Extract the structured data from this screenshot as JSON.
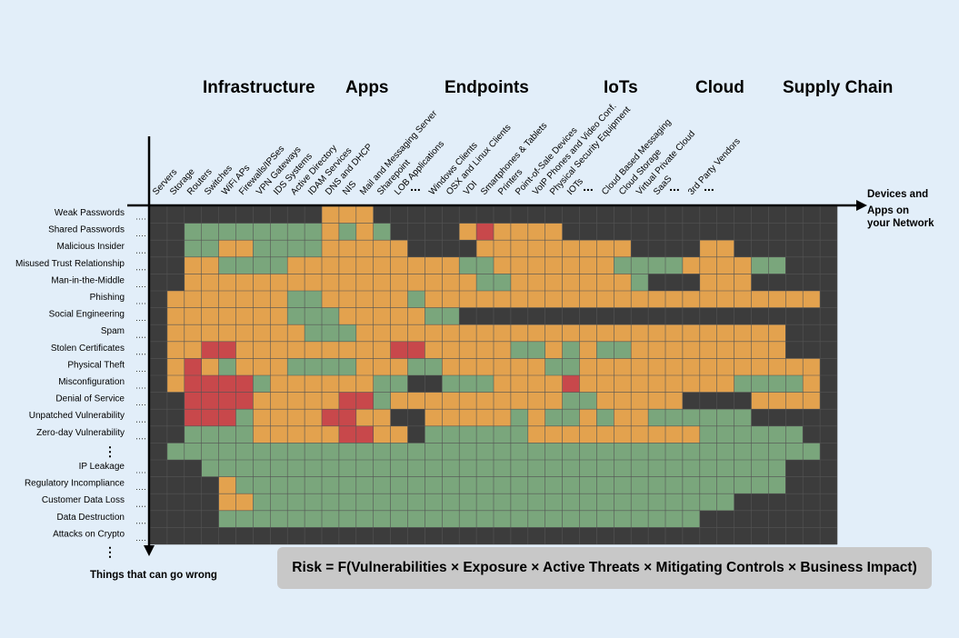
{
  "categories": [
    "Infrastructure",
    "Apps",
    "Endpoints",
    "IoTs",
    "Cloud",
    "Supply Chain"
  ],
  "columns": [
    "Servers",
    "Storage",
    "Routers",
    "Switches",
    "WiFi APs",
    "Firewalls/IPSes",
    "VPN Gateways",
    "IDS Systems",
    "Active Directory",
    "IDAM Services",
    "DNS and DHCP",
    "NIS",
    "Mail and Messaging Server",
    "Sharepoint",
    "LOB Applications",
    "...",
    "Windows Clients",
    "OSX and Linux Clients",
    "VDI",
    "Smartphones & Tablets",
    "Printers",
    "Point-of-Sale Devices",
    "VoIP Phones and Video Conf.",
    "Physical Security Equipment",
    "IOTs",
    "...",
    "Cloud Based Messaging",
    "Cloud Storage",
    "Virtual Private Cloud",
    "SaaS",
    "...",
    "3rd Party Vendors",
    "...",
    ""
  ],
  "rows": [
    "Weak Passwords",
    "Shared Passwords",
    "Malicious Insider",
    "Misused Trust Relationship",
    "Man-in-the-Middle",
    "Phishing",
    "Social Engineering",
    "Spam",
    "Stolen Certificates",
    "Physical Theft",
    "Misconfiguration",
    "Denial of Service",
    "Unpatched Vulnerability",
    "Zero-day Vulnerability",
    "⋮",
    "IP Leakage",
    "Regulatory Incompliance",
    "Customer Data Loss",
    "Data Destruction",
    "Attacks on Crypto"
  ],
  "x_axis_label": [
    "Devices and",
    "Apps on",
    "your Network"
  ],
  "y_axis_label": "Things that can go wrong",
  "y_axis_more": "⋮",
  "formula": "Risk = F(Vulnerabilities × Exposure × Active Threats × Mitigating Controls × Business Impact)",
  "colors": {
    "D": "#3c3c3c",
    "G": "#7aa67c",
    "O": "#e3a24e",
    "R": "#c8484b",
    "background": "#e2eef9",
    "formula_box": "#c8c8c8"
  },
  "grid": [
    "DDDDDDDDDDOOODDDDDDDDDDDDDDDDDDDDDDDDDDD",
    "DDGGGGGGGGOGOGDDDDOROOOODDDDDDDDDDDDDDDD",
    "DDGGOOGGGGOOOOODDDDOOOOOOOOODDDDOODDDDDD",
    "DDOOGGGGOOOOOOOOOOGGOOOOOOOGGGGOOOOGGDDD",
    "DDOOOOOOOOOOOOOOOOOGGOOOOOOOGDDDOOODDDDD",
    "DOOOOOOOGGOOOOOGOOOOOOOOOOOOOOOOOOOOOOOD",
    "DOOOOOOOGGGOOOOOGGDDDDDDDDDDDDDDDDDDDDDD",
    "DOOOOOOOOGGGOOOOOOOOOOOOOOOOOOOOOOOOODDD",
    "DOORROOOOOOOOORROOOOOGGOGOGGOOOOOOOOODDD",
    "DOROGOOOGGGGOOOGGOOOOOOGGOOOOOOOOOOOOOOD",
    "DORRRRGOOOOOOGGDDGGGOOOOROOOOOOOOOGGGGOD",
    "DDRRRROOOOORRGOOOOOOOOOOGGOOOOODDDDOOOOD",
    "DDRRRGOOOORROODDOOOOOGOGGOGOOGGGGGGDDDDD",
    "DDGGGGOOOOORROODGGGGGGOOOOOOOOOOGGGGGGDD",
    "DGGGGGGGGGGGGGGGGGGGGGGGGGGGGGGGGGGGGGGD",
    "DDDGGGGGGGGGGGGGGGGGGGGGGGGGGGGGGGGGGDDD",
    "DDDDOGGGGGGGGGGGGGGGGGGGGGGGGGGGGGGGGDDD",
    "DDDDOOGGGGGGGGGGGGGGGGGGGGGGGGGGGGDDDDDD",
    "DDDDGGGGGGGGGGGGGGGGGGGGGGGGGGGGDDDDDDDD",
    "DDDDDDDDDDDDDDDDDDDDDDDDDDDDDDDDDDDDDDDD"
  ]
}
